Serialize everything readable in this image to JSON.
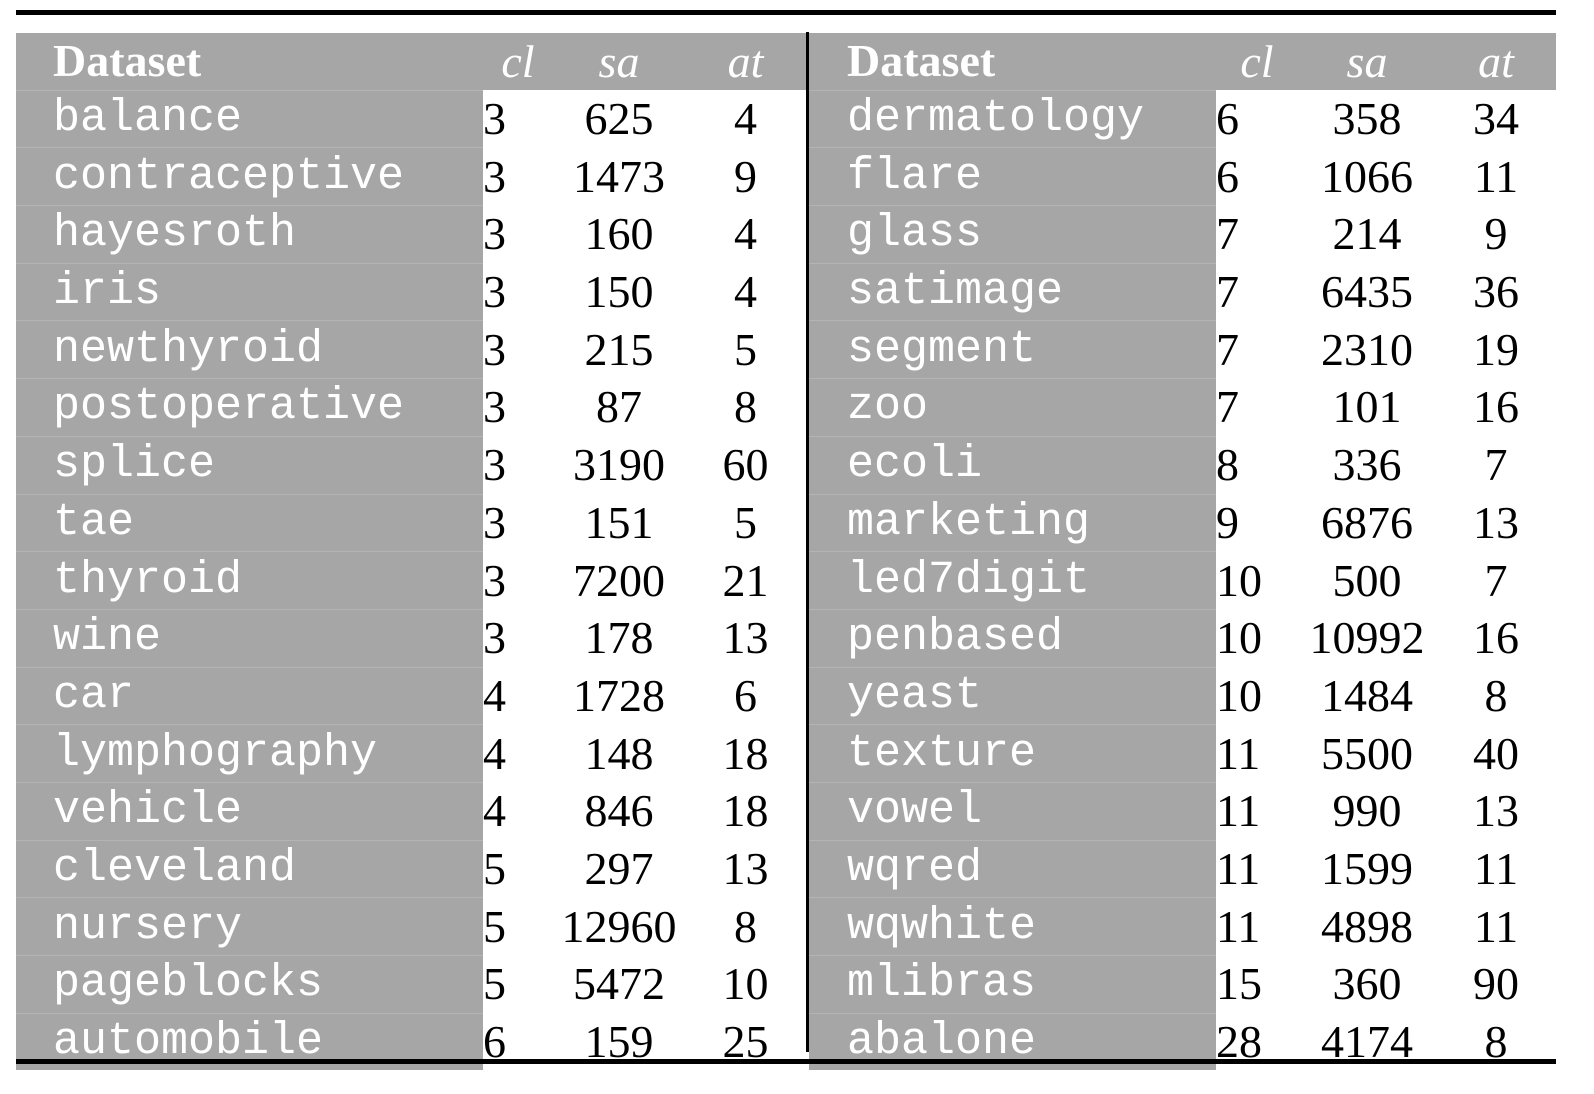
{
  "headers": {
    "dataset": "Dataset",
    "cl": "cl",
    "sa": "sa",
    "at": "at"
  },
  "left": [
    {
      "name": "balance",
      "cl": "3",
      "sa": "625",
      "at": "4"
    },
    {
      "name": "contraceptive",
      "cl": "3",
      "sa": "1473",
      "at": "9"
    },
    {
      "name": "hayesroth",
      "cl": "3",
      "sa": "160",
      "at": "4"
    },
    {
      "name": "iris",
      "cl": "3",
      "sa": "150",
      "at": "4"
    },
    {
      "name": "newthyroid",
      "cl": "3",
      "sa": "215",
      "at": "5"
    },
    {
      "name": "postoperative",
      "cl": "3",
      "sa": "87",
      "at": "8"
    },
    {
      "name": "splice",
      "cl": "3",
      "sa": "3190",
      "at": "60"
    },
    {
      "name": "tae",
      "cl": "3",
      "sa": "151",
      "at": "5"
    },
    {
      "name": "thyroid",
      "cl": "3",
      "sa": "7200",
      "at": "21"
    },
    {
      "name": "wine",
      "cl": "3",
      "sa": "178",
      "at": "13"
    },
    {
      "name": "car",
      "cl": "4",
      "sa": "1728",
      "at": "6"
    },
    {
      "name": "lymphography",
      "cl": "4",
      "sa": "148",
      "at": "18"
    },
    {
      "name": "vehicle",
      "cl": "4",
      "sa": "846",
      "at": "18"
    },
    {
      "name": "cleveland",
      "cl": "5",
      "sa": "297",
      "at": "13"
    },
    {
      "name": "nursery",
      "cl": "5",
      "sa": "12960",
      "at": "8"
    },
    {
      "name": "pageblocks",
      "cl": "5",
      "sa": "5472",
      "at": "10"
    },
    {
      "name": "automobile",
      "cl": "6",
      "sa": "159",
      "at": "25"
    }
  ],
  "right": [
    {
      "name": "dermatology",
      "cl": "6",
      "sa": "358",
      "at": "34"
    },
    {
      "name": "flare",
      "cl": "6",
      "sa": "1066",
      "at": "11"
    },
    {
      "name": "glass",
      "cl": "7",
      "sa": "214",
      "at": "9"
    },
    {
      "name": "satimage",
      "cl": "7",
      "sa": "6435",
      "at": "36"
    },
    {
      "name": "segment",
      "cl": "7",
      "sa": "2310",
      "at": "19"
    },
    {
      "name": "zoo",
      "cl": "7",
      "sa": "101",
      "at": "16"
    },
    {
      "name": "ecoli",
      "cl": "8",
      "sa": "336",
      "at": "7"
    },
    {
      "name": "marketing",
      "cl": "9",
      "sa": "6876",
      "at": "13"
    },
    {
      "name": "led7digit",
      "cl": "10",
      "sa": "500",
      "at": "7"
    },
    {
      "name": "penbased",
      "cl": "10",
      "sa": "10992",
      "at": "16"
    },
    {
      "name": "yeast",
      "cl": "10",
      "sa": "1484",
      "at": "8"
    },
    {
      "name": "texture",
      "cl": "11",
      "sa": "5500",
      "at": "40"
    },
    {
      "name": "vowel",
      "cl": "11",
      "sa": "990",
      "at": "13"
    },
    {
      "name": "wqred",
      "cl": "11",
      "sa": "1599",
      "at": "11"
    },
    {
      "name": "wqwhite",
      "cl": "11",
      "sa": "4898",
      "at": "11"
    },
    {
      "name": "mlibras",
      "cl": "15",
      "sa": "360",
      "at": "90"
    },
    {
      "name": "abalone",
      "cl": "28",
      "sa": "4174",
      "at": "8"
    }
  ]
}
